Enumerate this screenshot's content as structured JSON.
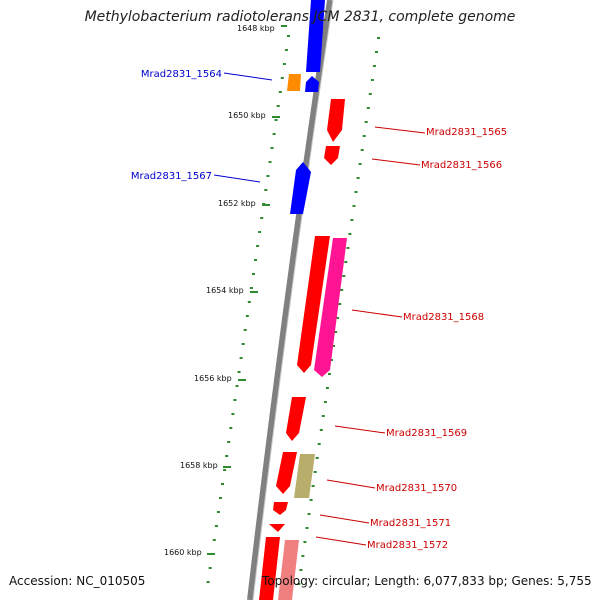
{
  "title": "Methylobacterium radiotolerans JCM 2831, complete genome",
  "footer": {
    "accession": "Accession: NC_010505",
    "summary": "Topology: circular; Length: 6,077,833 bp; Genes: 5,755"
  },
  "colors": {
    "forward_gene": "#0000ff",
    "reverse_gene": "#ff0000",
    "pink_gene": "#ff1493",
    "khaki_gene": "#b8ad6a",
    "orange_gene": "#ff8c00",
    "light_red_gene": "#f08080",
    "gc_skew_dots": "#2e8b2e",
    "backbone": "#808080",
    "label_blue": "#0000cc",
    "label_red": "#cc0000"
  },
  "scale_labels": [
    "1648 kbp",
    "1650 kbp",
    "1652 kbp",
    "1654 kbp",
    "1656 kbp",
    "1658 kbp",
    "1660 kbp"
  ],
  "gene_labels": {
    "left": [
      "Mrad2831_1564",
      "Mrad2831_1567"
    ],
    "right": [
      "Mrad2831_1565",
      "Mrad2831_1566",
      "Mrad2831_1568",
      "Mrad2831_1569",
      "Mrad2831_1570",
      "Mrad2831_1571",
      "Mrad2831_1572"
    ]
  }
}
